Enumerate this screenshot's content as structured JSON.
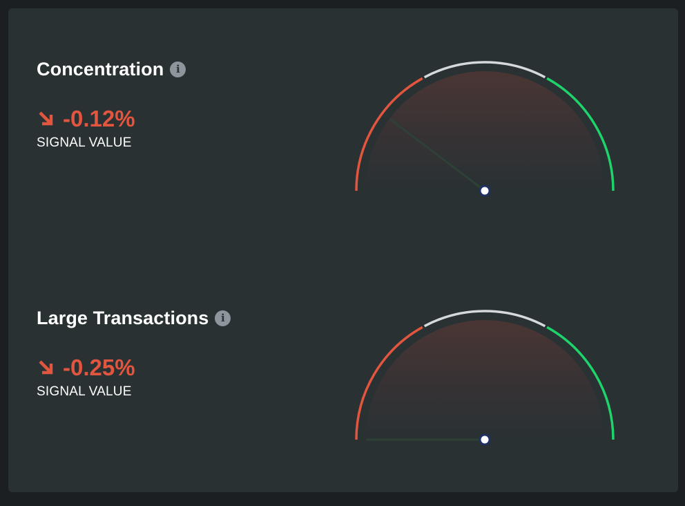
{
  "signals": [
    {
      "title": "Concentration",
      "info_icon": "info-icon",
      "direction_icon": "arrow-down-right-icon",
      "value": "-0.12%",
      "caption": "SIGNAL VALUE",
      "gauge_position": 0.206
    },
    {
      "title": "Large Transactions",
      "info_icon": "info-icon",
      "direction_icon": "arrow-down-right-icon",
      "value": "-0.25%",
      "caption": "SIGNAL VALUE",
      "gauge_position": 0.0
    }
  ],
  "colors": {
    "background": "#1b1f21",
    "card": "#293133",
    "negative": "#e2553e",
    "positive": "#1ed36a",
    "neutral": "#d6d9db",
    "needle": "#2d4137",
    "hub": "#ffffff",
    "hub_ring": "#1f3163"
  }
}
